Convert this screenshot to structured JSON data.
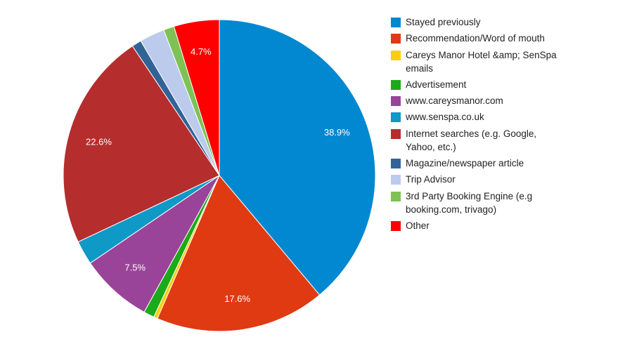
{
  "chart_data": {
    "type": "pie",
    "legend_position": "right",
    "slices": [
      {
        "label": "Stayed previously",
        "value": 38.9,
        "color": "#0288d1",
        "data_label": "38.9%"
      },
      {
        "label": "Recommendation/Word of mouth",
        "value": 17.6,
        "color": "#e03a12",
        "data_label": "17.6%"
      },
      {
        "label": "Careys Manor Hotel &amp; SenSpa emails",
        "value": 0.4,
        "color": "#fccd0c",
        "data_label": ""
      },
      {
        "label": "Advertisement",
        "value": 1.1,
        "color": "#1aaa1a",
        "data_label": ""
      },
      {
        "label": "www.careysmanor.com",
        "value": 7.5,
        "color": "#994499",
        "data_label": "7.5%"
      },
      {
        "label": "www.senspa.co.uk",
        "value": 2.5,
        "color": "#0e99c6",
        "data_label": ""
      },
      {
        "label": "Internet searches (e.g. Google, Yahoo, etc.)",
        "value": 22.6,
        "color": "#b52d2d",
        "data_label": "22.6%"
      },
      {
        "label": "Magazine/newspaper article",
        "value": 1.0,
        "color": "#326396",
        "data_label": ""
      },
      {
        "label": "Trip Advisor",
        "value": 2.6,
        "color": "#bccbec",
        "data_label": ""
      },
      {
        "label": "3rd Party Booking Engine (e.g booking.com, trivago)",
        "value": 1.1,
        "color": "#7dc253",
        "data_label": ""
      },
      {
        "label": "Other",
        "value": 4.7,
        "color": "#fe0000",
        "data_label": "4.7%"
      }
    ]
  }
}
